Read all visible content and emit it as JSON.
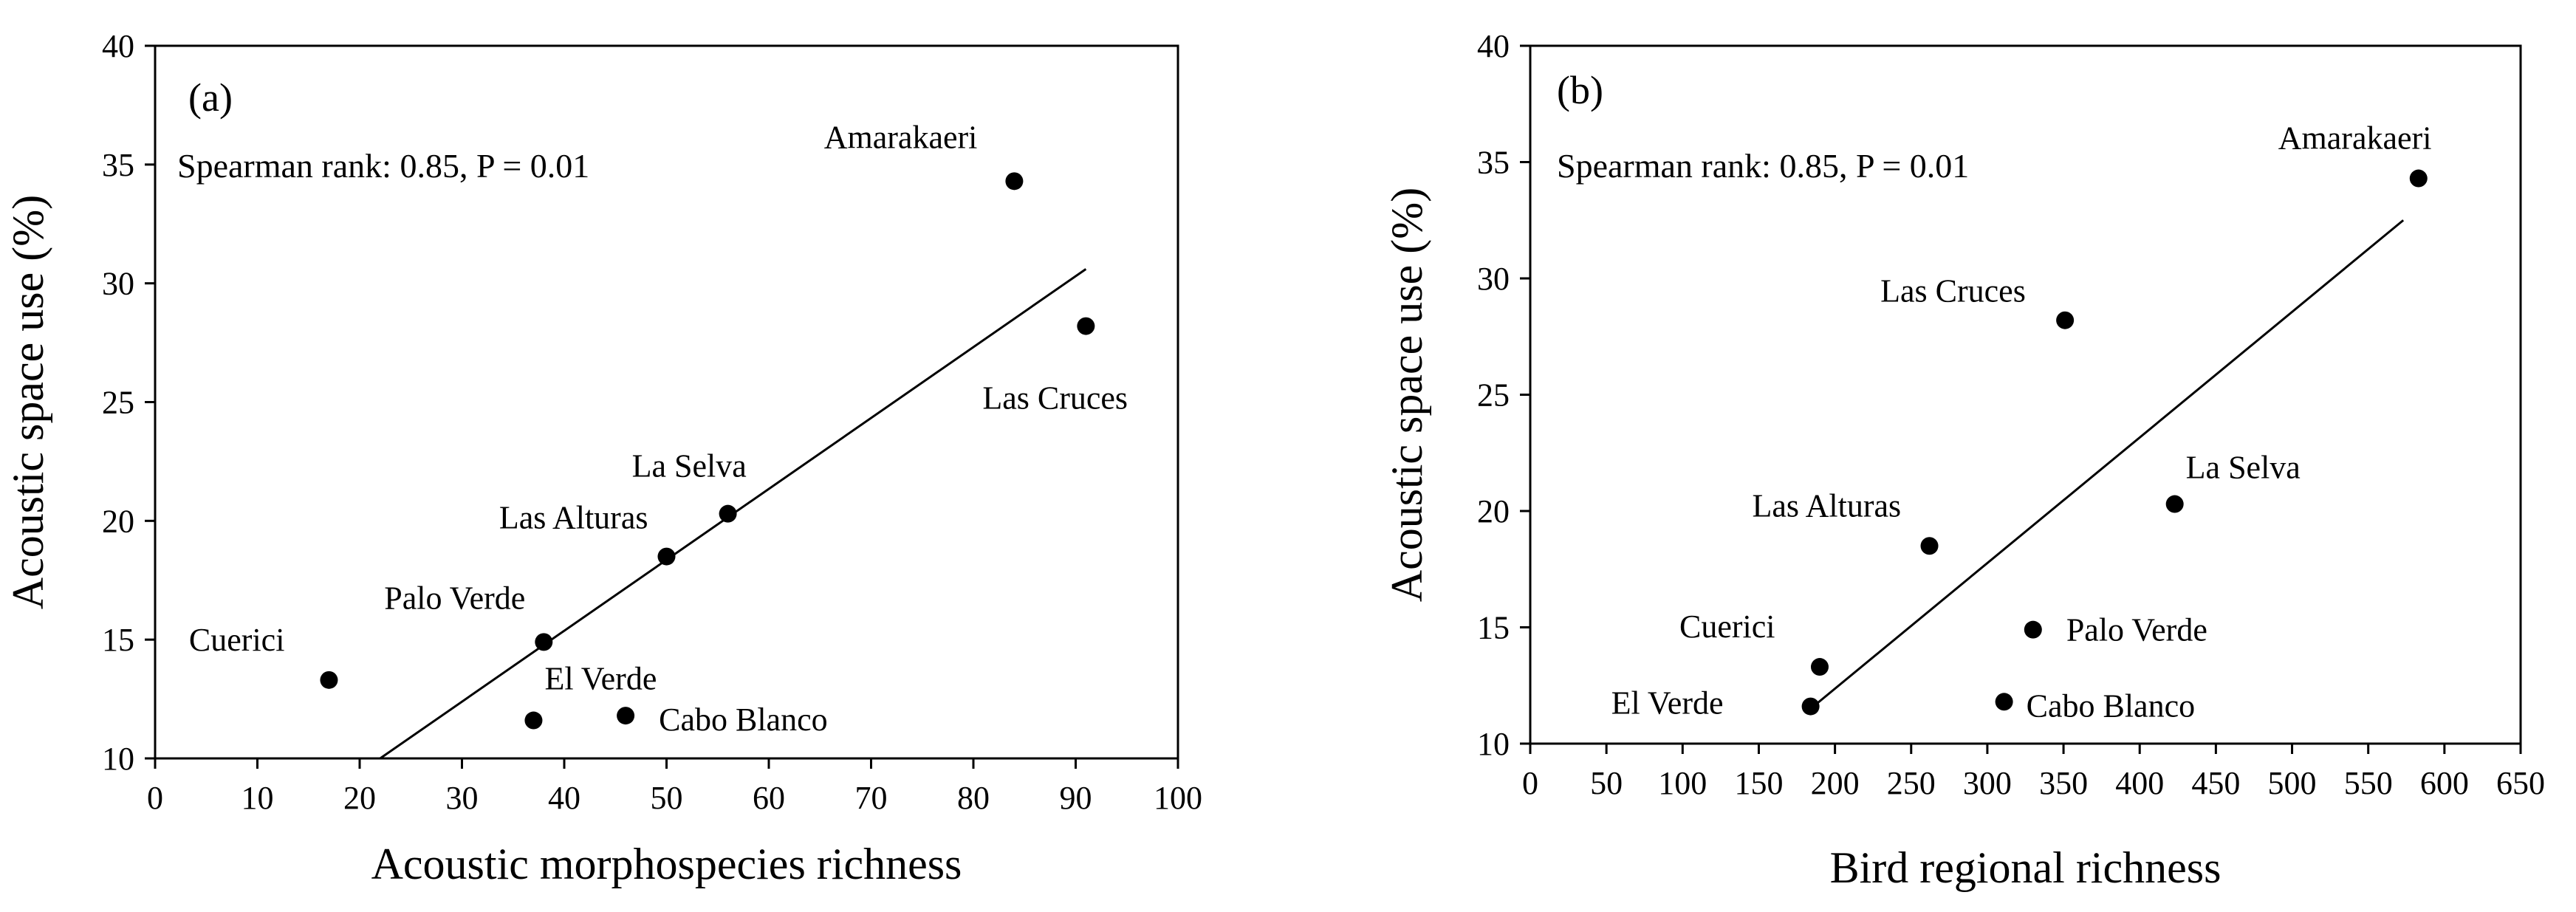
{
  "chart_data": [
    {
      "type": "scatter",
      "panel_label": "(a)",
      "annotation": "Spearman rank: 0.85, P = 0.01",
      "xlabel": "Acoustic morphospecies richness",
      "ylabel": "Acoustic space use (%)",
      "xlim": [
        0,
        100
      ],
      "ylim": [
        10,
        40
      ],
      "xticks": [
        0,
        10,
        20,
        30,
        40,
        50,
        60,
        70,
        80,
        90,
        100
      ],
      "yticks": [
        10,
        15,
        20,
        25,
        30,
        35,
        40
      ],
      "points": [
        {
          "name": "Amarakaeri",
          "x": 84,
          "y": 34.3
        },
        {
          "name": "Las Cruces",
          "x": 91,
          "y": 28.2
        },
        {
          "name": "La Selva",
          "x": 56,
          "y": 20.3
        },
        {
          "name": "Las Alturas",
          "x": 50,
          "y": 18.5
        },
        {
          "name": "Palo Verde",
          "x": 38,
          "y": 14.9
        },
        {
          "name": "Cuerici",
          "x": 17,
          "y": 13.3
        },
        {
          "name": "El Verde",
          "x": 37,
          "y": 11.6
        },
        {
          "name": "Cabo Blanco",
          "x": 46,
          "y": 11.8
        }
      ],
      "fit_line": {
        "x": [
          22,
          91
        ],
        "y": [
          10,
          30.6
        ]
      }
    },
    {
      "type": "scatter",
      "panel_label": "(b)",
      "annotation": "Spearman rank: 0.85, P = 0.01",
      "xlabel": "Bird regional richness",
      "ylabel": "Acoustic space use (%)",
      "xlim": [
        0,
        650
      ],
      "ylim": [
        10,
        40
      ],
      "xticks": [
        0,
        50,
        100,
        150,
        200,
        250,
        300,
        350,
        400,
        450,
        500,
        550,
        600,
        650
      ],
      "yticks": [
        10,
        15,
        20,
        25,
        30,
        35,
        40
      ],
      "points": [
        {
          "name": "Amarakaeri",
          "x": 583,
          "y": 34.3
        },
        {
          "name": "Las Cruces",
          "x": 351,
          "y": 28.2
        },
        {
          "name": "La Selva",
          "x": 423,
          "y": 20.3
        },
        {
          "name": "Las Alturas",
          "x": 262,
          "y": 18.5
        },
        {
          "name": "Palo Verde",
          "x": 330,
          "y": 14.9
        },
        {
          "name": "Cuerici",
          "x": 190,
          "y": 13.3
        },
        {
          "name": "El Verde",
          "x": 184,
          "y": 11.6
        },
        {
          "name": "Cabo Blanco",
          "x": 311,
          "y": 11.8
        }
      ],
      "fit_line": {
        "x": [
          184,
          573
        ],
        "y": [
          11.5,
          32.5
        ]
      }
    }
  ]
}
